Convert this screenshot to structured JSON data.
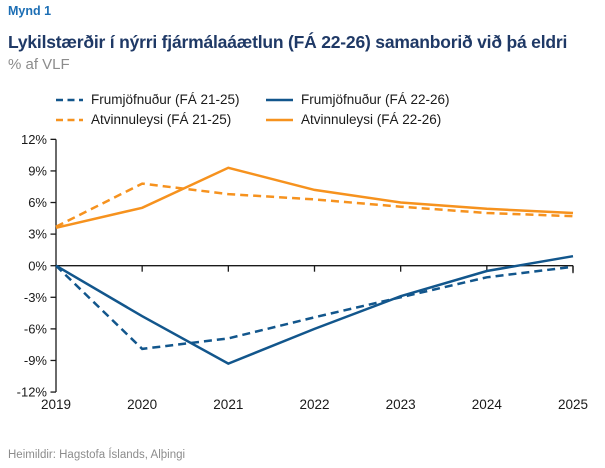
{
  "header": {
    "figure_label": "Mynd 1",
    "title": "Lykilstærðir í nýrri fjármálaáætlun (FÁ 22-26) samanborið við þá eldri",
    "subtitle": "% af VLF"
  },
  "legend": {
    "items": [
      {
        "label": "Frumjöfnuður (FÁ 21-25)",
        "color": "#12568C",
        "dashed": true
      },
      {
        "label": "Frumjöfnuður (FÁ 22-26)",
        "color": "#12568C",
        "dashed": false
      },
      {
        "label": "Atvinnuleysi (FÁ 21-25)",
        "color": "#F6921E",
        "dashed": true
      },
      {
        "label": "Atvinnuleysi (FÁ 22-26)",
        "color": "#F6921E",
        "dashed": false
      }
    ]
  },
  "chart_data": {
    "type": "line",
    "x": [
      2019,
      2020,
      2021,
      2022,
      2023,
      2024,
      2025
    ],
    "xtick_labels": [
      "2019",
      "2020",
      "2021",
      "2022",
      "2023",
      "2024",
      "2025"
    ],
    "ylim": [
      -12,
      12
    ],
    "ytick_step": 3,
    "ytick_labels": [
      "12%",
      "9%",
      "6%",
      "3%",
      "0%",
      "-3%",
      "-6%",
      "-9%",
      "-12%"
    ],
    "grid": false,
    "legend_position": "top",
    "series": [
      {
        "name": "Frumjöfnuður (FÁ 21-25)",
        "style": "dashed",
        "color": "#12568C",
        "values": [
          0.0,
          -7.9,
          -6.9,
          -4.9,
          -3.0,
          -1.1,
          -0.1
        ]
      },
      {
        "name": "Frumjöfnuður (FÁ 22-26)",
        "style": "solid",
        "color": "#12568C",
        "values": [
          0.0,
          -4.8,
          -9.3,
          -6.0,
          -2.9,
          -0.5,
          0.9
        ]
      },
      {
        "name": "Atvinnuleysi (FÁ 21-25)",
        "style": "dashed",
        "color": "#F6921E",
        "values": [
          3.7,
          7.8,
          6.8,
          6.3,
          5.6,
          5.0,
          4.7
        ]
      },
      {
        "name": "Atvinnuleysi (FÁ 22-26)",
        "style": "solid",
        "color": "#F6921E",
        "values": [
          3.6,
          5.5,
          9.3,
          7.2,
          6.0,
          5.4,
          5.0
        ]
      }
    ]
  },
  "footer": {
    "source": "Heimildir: Hagstofa Íslands, Alþingi"
  },
  "colors": {
    "navy": "#1F3966",
    "accent_blue": "#1C6EB4",
    "gray": "#8C8C8C",
    "axis": "#1a1a1a",
    "series_blue": "#12568C",
    "series_orange": "#F6921E"
  }
}
